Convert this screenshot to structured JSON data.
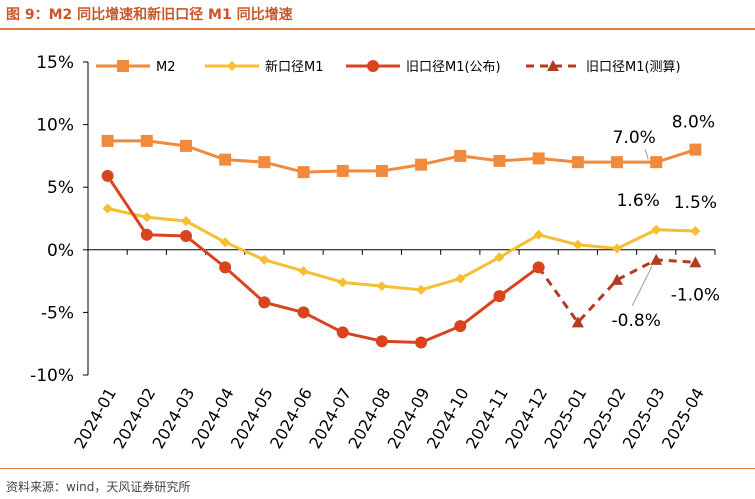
{
  "figure": {
    "title": "图 9：M2 同比增速和新旧口径 M1 同比增速",
    "source": "资料来源：wind，天风证券研究所"
  },
  "colors": {
    "m2": "#f08a3c",
    "m1_new": "#f5be33",
    "m1_old": "#d9431e",
    "m1_est": "#b53a22",
    "axis": "#000000",
    "heading": "#c9572b"
  },
  "chart_data": {
    "type": "line",
    "categories": [
      "2024-01",
      "2024-02",
      "2024-03",
      "2024-04",
      "2024-05",
      "2024-06",
      "2024-07",
      "2024-08",
      "2024-09",
      "2024-10",
      "2024-11",
      "2024-12",
      "2025-01",
      "2025-02",
      "2025-03",
      "2025-04"
    ],
    "ylim": [
      -10,
      15
    ],
    "yticks": [
      15,
      10,
      5,
      0,
      -5,
      -10
    ],
    "ytick_labels": [
      "15%",
      "10%",
      "5%",
      "0%",
      "-5%",
      "-10%"
    ],
    "series": [
      {
        "key": "m2",
        "name": "M2",
        "marker": "square",
        "dash": false,
        "values": [
          8.7,
          8.7,
          8.3,
          7.2,
          7.0,
          6.2,
          6.3,
          6.3,
          6.8,
          7.5,
          7.1,
          7.3,
          7.0,
          7.0,
          7.0,
          8.0
        ]
      },
      {
        "key": "m1_new",
        "name": "新口径M1",
        "marker": "diamond",
        "dash": false,
        "values": [
          3.3,
          2.6,
          2.3,
          0.6,
          -0.8,
          -1.7,
          -2.6,
          -2.9,
          -3.2,
          -2.3,
          -0.6,
          1.2,
          0.4,
          0.1,
          1.6,
          1.5
        ]
      },
      {
        "key": "m1_old",
        "name": "旧口径M1(公布)",
        "marker": "circle",
        "dash": false,
        "values": [
          5.9,
          1.2,
          1.1,
          -1.4,
          -4.2,
          -5.0,
          -6.6,
          -7.3,
          -7.4,
          -6.1,
          -3.7,
          -1.4,
          null,
          null,
          null,
          null
        ]
      },
      {
        "key": "m1_est",
        "name": "旧口径M1(测算)",
        "marker": "triangle",
        "dash": true,
        "values": [
          null,
          null,
          null,
          null,
          null,
          null,
          null,
          null,
          null,
          null,
          null,
          -1.4,
          -5.8,
          -2.4,
          -0.8,
          -1.0
        ]
      }
    ],
    "annotations": [
      {
        "text": "8.0%",
        "series": "m2",
        "index": 15
      },
      {
        "text": "7.0%",
        "series": "m2",
        "index": 14
      },
      {
        "text": "1.6%",
        "series": "m1_new",
        "index": 14
      },
      {
        "text": "1.5%",
        "series": "m1_new",
        "index": 15
      },
      {
        "text": "-0.8%",
        "series": "m1_est",
        "index": 14
      },
      {
        "text": "-1.0%",
        "series": "m1_est",
        "index": 15
      }
    ]
  }
}
